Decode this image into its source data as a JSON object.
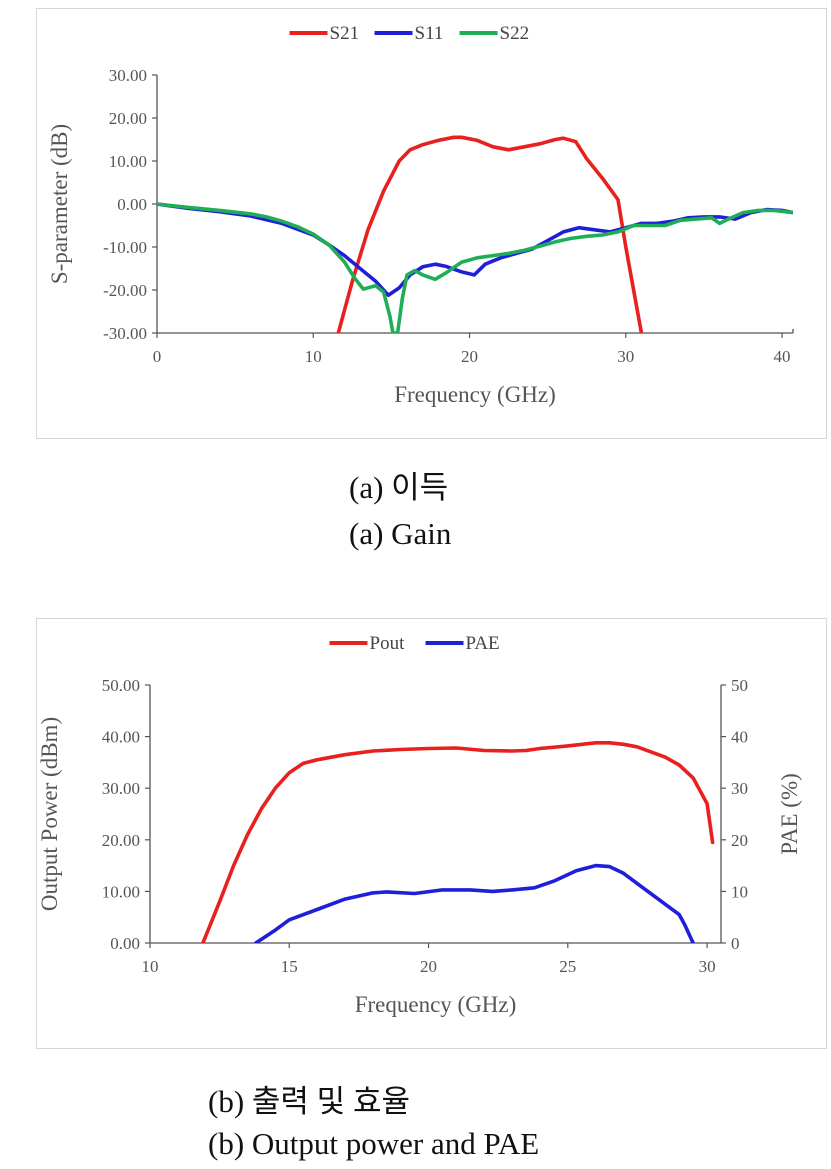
{
  "captions": {
    "a_korean": "(a) 이득",
    "a_english": "(a) Gain",
    "b_korean": "(b) 출력 및 효율",
    "b_english": "(b) Output power and PAE"
  },
  "colors": {
    "red": "#e8201e",
    "blue": "#1f1fd9",
    "green": "#1fae55",
    "axis": "#555555",
    "tick_text": "#555555"
  },
  "chart_data": [
    {
      "type": "line",
      "title": "",
      "xlabel": "Frequency (GHz)",
      "ylabel": "S-parameter (dB)",
      "xlim": [
        0,
        40.7
      ],
      "ylim": [
        -30,
        30
      ],
      "xticks": [
        0,
        10,
        20,
        30,
        40
      ],
      "yticks": [
        30,
        20,
        10,
        0,
        -10,
        -20,
        -30
      ],
      "ytick_labels": [
        "30.00",
        "20.00",
        "10.00",
        "0.00",
        "-10.00",
        "-20.00",
        "-30.00"
      ],
      "legend_position": "top-center",
      "series": [
        {
          "name": "S21",
          "color": "#e8201e",
          "x": [
            11.6,
            12.5,
            13.5,
            14.5,
            15.5,
            16.2,
            17,
            18,
            19,
            19.5,
            20.5,
            21.5,
            22.5,
            23.5,
            24.5,
            25.5,
            26,
            26.8,
            27.5,
            28.5,
            29.5,
            30,
            30.5,
            31
          ],
          "y": [
            -30,
            -18,
            -6,
            3,
            10,
            12.6,
            13.8,
            14.8,
            15.5,
            15.5,
            14.8,
            13.3,
            12.6,
            13.3,
            14,
            15,
            15.3,
            14.5,
            10.5,
            6,
            1,
            -10,
            -20,
            -30
          ]
        },
        {
          "name": "S11",
          "color": "#1f1fd9",
          "x": [
            0,
            2,
            4,
            6,
            8,
            10,
            11,
            12,
            13,
            14,
            14.8,
            15.5,
            16.2,
            17,
            17.8,
            18.5,
            19.5,
            20.3,
            21,
            22,
            23,
            24,
            25,
            26,
            27,
            28,
            29,
            30,
            31,
            32,
            33,
            34,
            35,
            36,
            37,
            38,
            39,
            40,
            40.7
          ],
          "y": [
            0,
            -1,
            -1.8,
            -2.8,
            -4.5,
            -7.2,
            -9.5,
            -12,
            -15,
            -18,
            -21.2,
            -19.5,
            -16.5,
            -14.6,
            -14,
            -14.5,
            -15.8,
            -16.5,
            -14,
            -12.5,
            -11.5,
            -10.5,
            -8.5,
            -6.5,
            -5.5,
            -6,
            -6.5,
            -5.5,
            -4.5,
            -4.5,
            -4,
            -3.2,
            -3,
            -3,
            -3.5,
            -2,
            -1.3,
            -1.5,
            -2
          ]
        },
        {
          "name": "S22",
          "color": "#1fae55",
          "x": [
            0,
            2,
            4,
            6,
            7,
            8,
            9,
            10,
            11,
            12,
            12.7,
            13.2,
            14,
            14.5,
            14.9,
            15.1,
            15.4,
            15.7,
            16,
            16.5,
            17,
            17.8,
            18.5,
            19.5,
            20.5,
            21.5,
            22.5,
            23.5,
            24.5,
            25.5,
            26.5,
            27.5,
            28.5,
            29.5,
            30.5,
            31.5,
            32.5,
            33.5,
            34.5,
            35.5,
            36,
            36.5,
            37.5,
            38.5,
            39.5,
            40.7
          ],
          "y": [
            0,
            -0.8,
            -1.5,
            -2.3,
            -3,
            -4,
            -5.3,
            -7,
            -9.5,
            -13.5,
            -17.5,
            -19.8,
            -19,
            -20.5,
            -26,
            -30,
            -30,
            -22,
            -16.5,
            -15.5,
            -16.5,
            -17.5,
            -16,
            -13.5,
            -12.5,
            -12,
            -11.5,
            -10.8,
            -9.8,
            -8.8,
            -8,
            -7.5,
            -7.2,
            -6.5,
            -5,
            -5,
            -5,
            -3.8,
            -3.5,
            -3.2,
            -4.5,
            -3.6,
            -2,
            -1.5,
            -1.5,
            -2
          ]
        }
      ]
    },
    {
      "type": "line",
      "title": "",
      "xlabel": "Frequency (GHz)",
      "ylabel": "Output Power (dBm)",
      "ylabel_right": "PAE (%)",
      "xlim": [
        10,
        30.5
      ],
      "ylim": [
        0,
        50
      ],
      "ylim_right": [
        0,
        50
      ],
      "xticks": [
        10,
        15,
        20,
        25,
        30
      ],
      "yticks": [
        50,
        40,
        30,
        20,
        10,
        0
      ],
      "ytick_labels": [
        "50.00",
        "40.00",
        "30.00",
        "20.00",
        "10.00",
        "0.00"
      ],
      "yticks_right": [
        50,
        40,
        30,
        20,
        10,
        0
      ],
      "ytick_labels_right": [
        "50",
        "40",
        "30",
        "20",
        "10",
        "0"
      ],
      "legend_position": "top-center",
      "series": [
        {
          "name": "Pout",
          "color": "#e8201e",
          "axis": "left",
          "x": [
            11.9,
            12.5,
            13,
            13.5,
            14,
            14.5,
            15,
            15.5,
            16,
            17,
            18,
            19,
            20,
            21,
            22,
            23,
            23.5,
            24,
            25,
            26,
            26.5,
            27,
            27.5,
            28,
            28.5,
            29,
            29.5,
            30,
            30.2
          ],
          "y": [
            0,
            8,
            15,
            21,
            26,
            30,
            33,
            34.8,
            35.5,
            36.5,
            37.2,
            37.5,
            37.7,
            37.8,
            37.3,
            37.2,
            37.3,
            37.7,
            38.2,
            38.8,
            38.8,
            38.5,
            38,
            37,
            36,
            34.5,
            32,
            27,
            19.5
          ]
        },
        {
          "name": "PAE",
          "color": "#1f1fd9",
          "axis": "right",
          "x": [
            13.8,
            14.5,
            15,
            16,
            17,
            18,
            18.5,
            19.5,
            20.5,
            21.5,
            22.3,
            23,
            23.8,
            24.5,
            25.3,
            26,
            26.5,
            27,
            27.5,
            28,
            28.5,
            29,
            29.2,
            29.5
          ],
          "y": [
            0,
            2.5,
            4.5,
            6.5,
            8.5,
            9.7,
            9.9,
            9.6,
            10.3,
            10.3,
            10,
            10.3,
            10.7,
            12,
            14,
            15,
            14.8,
            13.5,
            11.5,
            9.5,
            7.5,
            5.5,
            3.5,
            0
          ]
        }
      ]
    }
  ]
}
